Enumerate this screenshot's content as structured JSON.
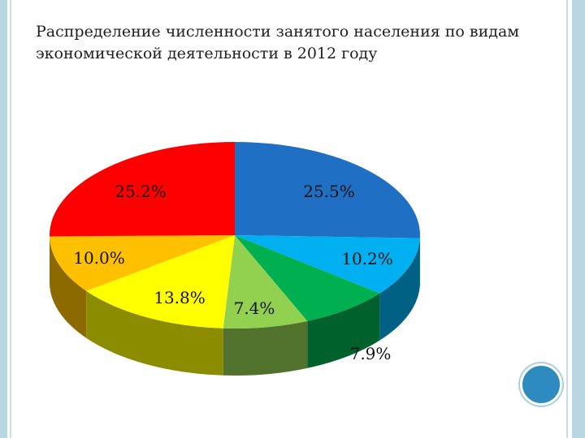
{
  "slide": {
    "title": "Распределение численности занятого населения по видам экономической деятельности в 2012 году"
  },
  "chart_data": {
    "type": "pie",
    "style": "3d",
    "title": "Распределение численности занятого населения по видам экономической деятельности в 2012 году",
    "slices": [
      {
        "label": "25.5%",
        "value": 25.5,
        "color": "#1f6fc5"
      },
      {
        "label": "10.2%",
        "value": 10.2,
        "color": "#00b0f0"
      },
      {
        "label": "7.9%",
        "value": 7.9,
        "color": "#00b050"
      },
      {
        "label": "7.4%",
        "value": 7.4,
        "color": "#92d050"
      },
      {
        "label": "13.8%",
        "value": 13.8,
        "color": "#ffff00"
      },
      {
        "label": "10.0%",
        "value": 10.0,
        "color": "#ffc000"
      },
      {
        "label": "25.2%",
        "value": 25.2,
        "color": "#ff0000"
      }
    ],
    "legend": "none"
  },
  "decor": {
    "nav_icon": "circle-button-icon",
    "accent_color": "#2d8bbf"
  }
}
